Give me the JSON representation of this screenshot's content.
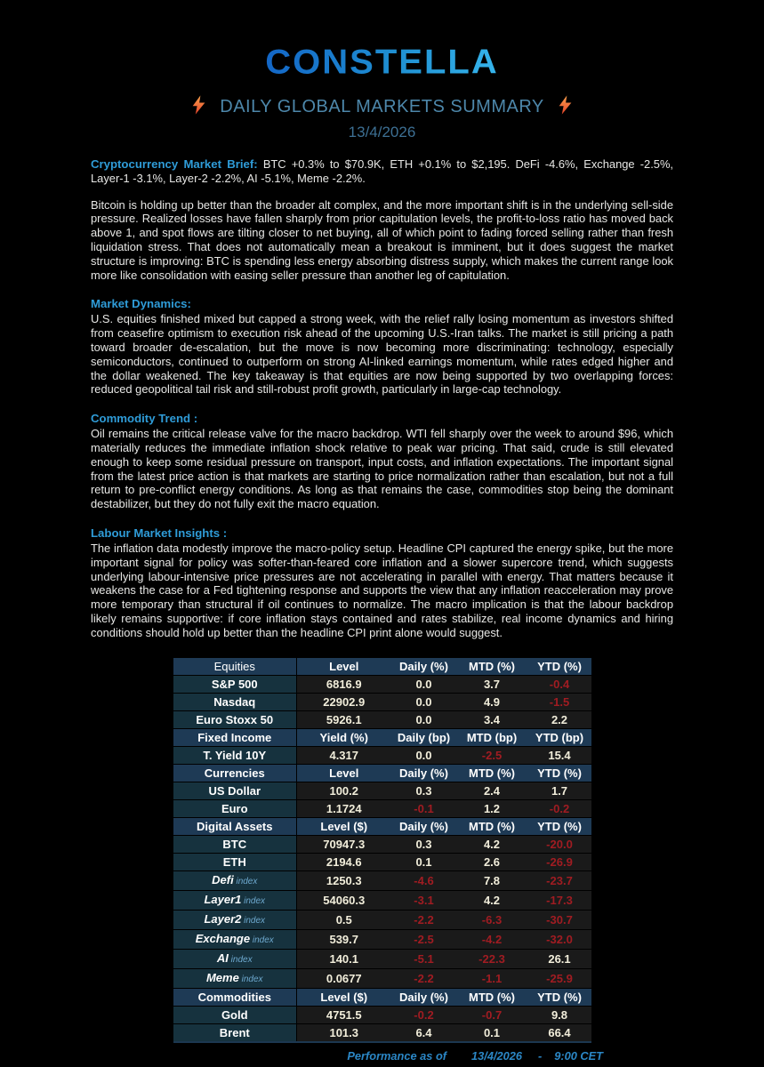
{
  "logo": "CONSTELLA",
  "header": {
    "title": "DAILY GLOBAL MARKETS SUMMARY",
    "date": "13/4/2026"
  },
  "colors": {
    "accent_heading_blue": "#2f9cd8",
    "title_blue": "#4d87aa",
    "date_blue": "#3d7094",
    "logo_gradient_start": "#1366c6",
    "logo_gradient_end": "#36b5ec",
    "bolt_orange": "#f9a24d",
    "bolt_red": "#e7432a",
    "table_header_bg": "#1e3a55",
    "table_label_bg": "#16323e",
    "table_value_bg": "#1a1a1a",
    "value_cream": "#f2eedb",
    "negative_red": "#a01c22",
    "index_suffix_blue": "#6ea9cf",
    "footer_blue": "#2b87c6"
  },
  "icons": {
    "left_bolt": "lightning-bolt-icon",
    "right_bolt": "lightning-bolt-icon"
  },
  "sections": [
    {
      "heading": "Cryptocurrency Market Brief:",
      "lead": "BTC +0.3% to $70.9K, ETH +0.1% to $2,195. DeFi -4.6%, Exchange -2.5%, Layer-1 -3.1%, Layer-2 -2.2%, AI -5.1%, Meme -2.2%.",
      "body": "Bitcoin is holding up better than the broader alt complex, and the more important shift is in the underlying sell-side pressure. Realized losses have fallen sharply from prior capitulation levels, the profit-to-loss ratio has moved back above 1, and spot flows are tilting closer to net buying, all of which point to fading forced selling rather than fresh liquidation stress. That does not automatically mean a breakout is imminent, but it does suggest the market structure is improving: BTC is spending less energy absorbing distress supply, which makes the current range look more like consolidation with easing seller pressure than another leg of capitulation."
    },
    {
      "heading": "Market Dynamics:",
      "body": "U.S. equities finished mixed but capped a strong week, with the relief rally losing momentum as investors shifted from ceasefire optimism to execution risk ahead of the upcoming U.S.-Iran talks. The market is still pricing a path toward broader de-escalation, but the move is now becoming more discriminating: technology, especially semiconductors, continued to outperform on strong AI-linked earnings momentum, while rates edged higher and the dollar weakened. The key takeaway is that equities are now being supported by two overlapping forces: reduced geopolitical tail risk and still-robust profit growth, particularly in large-cap technology."
    },
    {
      "heading": "Commodity Trend :",
      "body": "Oil remains the critical release valve for the macro backdrop. WTI fell sharply over the week to around $96, which materially reduces the immediate inflation shock relative to peak war pricing. That said, crude is still elevated enough to keep some residual pressure on transport, input costs, and inflation expectations. The important signal from the latest price action is that markets are starting to price normalization rather than escalation, but not a full return to pre-conflict energy conditions. As long as that remains the case, commodities stop being the dominant destabilizer, but they do not fully exit the macro equation."
    },
    {
      "heading": "Labour Market Insights :",
      "body": "The inflation data modestly improve the macro-policy setup. Headline CPI captured the energy spike, but the more important signal for policy was softer-than-feared core inflation and a slower supercore trend, which suggests underlying labour-intensive price pressures are not accelerating in parallel with energy. That matters because it weakens the case for a Fed tightening response and supports the view that any inflation reacceleration may prove more temporary than structural if oil continues to normalize. The macro implication is that the labour backdrop likely remains supportive: if core inflation stays contained and rates stabilize, real income dynamics and hiring conditions should hold up better than the headline CPI print alone would suggest."
    }
  ],
  "table": {
    "groups": [
      {
        "header": [
          "Equities",
          "Level",
          "Daily (%)",
          "MTD (%)",
          "YTD (%)"
        ],
        "rows": [
          {
            "label": "S&P 500",
            "values": [
              "6816.9",
              "0.0",
              "3.7",
              "-0.4"
            ]
          },
          {
            "label": "Nasdaq",
            "values": [
              "22902.9",
              "0.0",
              "4.9",
              "-1.5"
            ]
          },
          {
            "label": "Euro Stoxx 50",
            "values": [
              "5926.1",
              "0.0",
              "3.4",
              "2.2"
            ]
          }
        ]
      },
      {
        "header": [
          "Fixed Income",
          "Yield (%)",
          "Daily (bp)",
          "MTD (bp)",
          "YTD (bp)"
        ],
        "rows": [
          {
            "label": "T. Yield 10Y",
            "values": [
              "4.317",
              "0.0",
              "-2.5",
              "15.4"
            ]
          }
        ]
      },
      {
        "header": [
          "Currencies",
          "Level",
          "Daily (%)",
          "MTD (%)",
          "YTD (%)"
        ],
        "rows": [
          {
            "label": "US Dollar",
            "values": [
              "100.2",
              "0.3",
              "2.4",
              "1.7"
            ]
          },
          {
            "label": "Euro",
            "values": [
              "1.1724",
              "-0.1",
              "1.2",
              "-0.2"
            ]
          }
        ]
      },
      {
        "header": [
          "Digital Assets",
          "Level ($)",
          "Daily (%)",
          "MTD (%)",
          "YTD (%)"
        ],
        "rows": [
          {
            "label": "BTC",
            "values": [
              "70947.3",
              "0.3",
              "4.2",
              "-20.0"
            ]
          },
          {
            "label": "ETH",
            "values": [
              "2194.6",
              "0.1",
              "2.6",
              "-26.9"
            ]
          },
          {
            "label": "Defi",
            "sub": "index",
            "values": [
              "1250.3",
              "-4.6",
              "7.8",
              "-23.7"
            ]
          },
          {
            "label": "Layer1",
            "sub": "index",
            "values": [
              "54060.3",
              "-3.1",
              "4.2",
              "-17.3"
            ]
          },
          {
            "label": "Layer2",
            "sub": "index",
            "values": [
              "0.5",
              "-2.2",
              "-6.3",
              "-30.7"
            ]
          },
          {
            "label": "Exchange",
            "sub": "index",
            "values": [
              "539.7",
              "-2.5",
              "-4.2",
              "-32.0"
            ]
          },
          {
            "label": "AI",
            "sub": "index",
            "values": [
              "140.1",
              "-5.1",
              "-22.3",
              "26.1"
            ]
          },
          {
            "label": "Meme",
            "sub": "index",
            "values": [
              "0.0677",
              "-2.2",
              "-1.1",
              "-25.9"
            ]
          }
        ]
      },
      {
        "header": [
          "Commodities",
          "Level ($)",
          "Daily (%)",
          "MTD (%)",
          "YTD (%)"
        ],
        "rows": [
          {
            "label": "Gold",
            "values": [
              "4751.5",
              "-0.2",
              "-0.7",
              "9.8"
            ]
          },
          {
            "label": "Brent",
            "values": [
              "101.3",
              "6.4",
              "0.1",
              "66.4"
            ]
          }
        ]
      }
    ]
  },
  "footer": {
    "label": "Performance as of",
    "date": "13/4/2026",
    "dash": "-",
    "time": "9:00 CET"
  }
}
